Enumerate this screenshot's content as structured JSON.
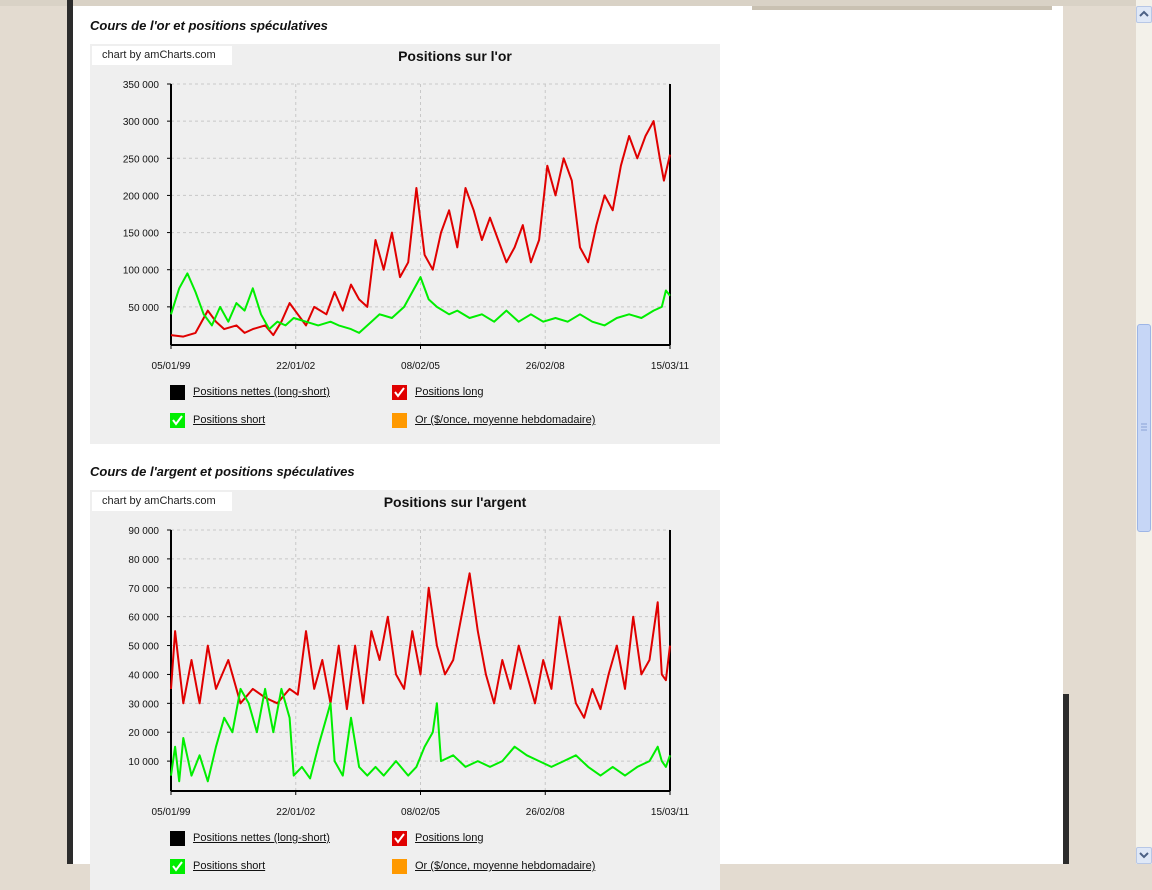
{
  "page": {
    "sections": [
      {
        "heading": "Cours de l'or et positions spéculatives"
      },
      {
        "heading": "Cours de l'argent et positions spéculatives"
      }
    ]
  },
  "colors": {
    "net": "#000000",
    "long": "#e00000",
    "short": "#00ee00",
    "gold_price": "#ff9900",
    "panel": "#efefef"
  },
  "chart_data": [
    {
      "type": "line",
      "credit": "chart by amCharts.com",
      "title": "Positions sur l'or",
      "x_tick_labels": [
        "05/01/99",
        "22/01/02",
        "08/02/05",
        "26/02/08",
        "15/03/11"
      ],
      "y_tick_labels": [
        "350 000",
        "300 000",
        "250 000",
        "200 000",
        "150 000",
        "100 000",
        "50 000"
      ],
      "ylim": [
        0,
        350000
      ],
      "xlim_years": [
        1999.0,
        2011.2
      ],
      "grid": true,
      "legend": [
        {
          "name": "Positions nettes (long-short)",
          "color": "#000000",
          "checked": false
        },
        {
          "name": "Positions long",
          "color": "#e00000",
          "checked": true
        },
        {
          "name": "Positions short",
          "color": "#00ee00",
          "checked": true
        },
        {
          "name": "Or ($/once, moyenne hebdomadaire)",
          "color": "#ff9900",
          "checked": false
        }
      ],
      "series": [
        {
          "name": "Positions long",
          "color": "#e00000",
          "points": [
            [
              1999.0,
              12000
            ],
            [
              1999.3,
              10000
            ],
            [
              1999.6,
              15000
            ],
            [
              1999.9,
              45000
            ],
            [
              2000.1,
              30000
            ],
            [
              2000.3,
              20000
            ],
            [
              2000.6,
              25000
            ],
            [
              2000.8,
              15000
            ],
            [
              2001.0,
              20000
            ],
            [
              2001.3,
              25000
            ],
            [
              2001.5,
              12000
            ],
            [
              2001.7,
              30000
            ],
            [
              2001.9,
              55000
            ],
            [
              2002.1,
              40000
            ],
            [
              2002.3,
              25000
            ],
            [
              2002.5,
              50000
            ],
            [
              2002.8,
              40000
            ],
            [
              2003.0,
              70000
            ],
            [
              2003.2,
              45000
            ],
            [
              2003.4,
              80000
            ],
            [
              2003.6,
              60000
            ],
            [
              2003.8,
              50000
            ],
            [
              2004.0,
              140000
            ],
            [
              2004.2,
              100000
            ],
            [
              2004.4,
              150000
            ],
            [
              2004.6,
              90000
            ],
            [
              2004.8,
              110000
            ],
            [
              2005.0,
              210000
            ],
            [
              2005.2,
              120000
            ],
            [
              2005.4,
              100000
            ],
            [
              2005.6,
              150000
            ],
            [
              2005.8,
              180000
            ],
            [
              2006.0,
              130000
            ],
            [
              2006.2,
              210000
            ],
            [
              2006.4,
              180000
            ],
            [
              2006.6,
              140000
            ],
            [
              2006.8,
              170000
            ],
            [
              2007.0,
              140000
            ],
            [
              2007.2,
              110000
            ],
            [
              2007.4,
              130000
            ],
            [
              2007.6,
              160000
            ],
            [
              2007.8,
              110000
            ],
            [
              2008.0,
              140000
            ],
            [
              2008.2,
              240000
            ],
            [
              2008.4,
              200000
            ],
            [
              2008.6,
              250000
            ],
            [
              2008.8,
              220000
            ],
            [
              2009.0,
              130000
            ],
            [
              2009.2,
              110000
            ],
            [
              2009.4,
              160000
            ],
            [
              2009.6,
              200000
            ],
            [
              2009.8,
              180000
            ],
            [
              2010.0,
              240000
            ],
            [
              2010.2,
              280000
            ],
            [
              2010.4,
              250000
            ],
            [
              2010.6,
              280000
            ],
            [
              2010.8,
              300000
            ],
            [
              2010.95,
              250000
            ],
            [
              2011.05,
              220000
            ],
            [
              2011.2,
              255000
            ]
          ]
        },
        {
          "name": "Positions short",
          "color": "#00ee00",
          "points": [
            [
              1999.0,
              40000
            ],
            [
              1999.2,
              75000
            ],
            [
              1999.4,
              95000
            ],
            [
              1999.6,
              70000
            ],
            [
              1999.8,
              40000
            ],
            [
              2000.0,
              25000
            ],
            [
              2000.2,
              50000
            ],
            [
              2000.4,
              30000
            ],
            [
              2000.6,
              55000
            ],
            [
              2000.8,
              45000
            ],
            [
              2001.0,
              75000
            ],
            [
              2001.2,
              40000
            ],
            [
              2001.4,
              20000
            ],
            [
              2001.6,
              30000
            ],
            [
              2001.8,
              25000
            ],
            [
              2002.0,
              35000
            ],
            [
              2002.3,
              30000
            ],
            [
              2002.6,
              25000
            ],
            [
              2002.9,
              30000
            ],
            [
              2003.1,
              25000
            ],
            [
              2003.4,
              20000
            ],
            [
              2003.6,
              15000
            ],
            [
              2003.9,
              30000
            ],
            [
              2004.1,
              40000
            ],
            [
              2004.4,
              35000
            ],
            [
              2004.7,
              50000
            ],
            [
              2004.9,
              70000
            ],
            [
              2005.1,
              90000
            ],
            [
              2005.3,
              60000
            ],
            [
              2005.5,
              50000
            ],
            [
              2005.8,
              40000
            ],
            [
              2006.0,
              45000
            ],
            [
              2006.3,
              35000
            ],
            [
              2006.6,
              40000
            ],
            [
              2006.9,
              30000
            ],
            [
              2007.2,
              45000
            ],
            [
              2007.5,
              30000
            ],
            [
              2007.8,
              40000
            ],
            [
              2008.1,
              30000
            ],
            [
              2008.4,
              35000
            ],
            [
              2008.7,
              30000
            ],
            [
              2009.0,
              40000
            ],
            [
              2009.3,
              30000
            ],
            [
              2009.6,
              25000
            ],
            [
              2009.9,
              35000
            ],
            [
              2010.2,
              40000
            ],
            [
              2010.5,
              35000
            ],
            [
              2010.8,
              45000
            ],
            [
              2011.0,
              50000
            ],
            [
              2011.1,
              72000
            ],
            [
              2011.2,
              65000
            ]
          ]
        }
      ]
    },
    {
      "type": "line",
      "credit": "chart by amCharts.com",
      "title": "Positions sur l'argent",
      "x_tick_labels": [
        "05/01/99",
        "22/01/02",
        "08/02/05",
        "26/02/08",
        "15/03/11"
      ],
      "y_tick_labels": [
        "90 000",
        "80 000",
        "70 000",
        "60 000",
        "50 000",
        "40 000",
        "30 000",
        "20 000",
        "10 000"
      ],
      "ylim": [
        0,
        90000
      ],
      "xlim_years": [
        1999.0,
        2011.2
      ],
      "grid": true,
      "legend": [
        {
          "name": "Positions nettes (long-short)",
          "color": "#000000",
          "checked": false
        },
        {
          "name": "Positions long",
          "color": "#e00000",
          "checked": true
        },
        {
          "name": "Positions short",
          "color": "#00ee00",
          "checked": true
        },
        {
          "name": "Or ($/once, moyenne hebdomadaire)",
          "color": "#ff9900",
          "checked": false
        }
      ],
      "series": [
        {
          "name": "Positions long",
          "color": "#e00000",
          "points": [
            [
              1999.0,
              35000
            ],
            [
              1999.1,
              55000
            ],
            [
              1999.3,
              30000
            ],
            [
              1999.5,
              45000
            ],
            [
              1999.7,
              30000
            ],
            [
              1999.9,
              50000
            ],
            [
              2000.1,
              35000
            ],
            [
              2000.4,
              45000
            ],
            [
              2000.7,
              30000
            ],
            [
              2001.0,
              35000
            ],
            [
              2001.3,
              32000
            ],
            [
              2001.6,
              30000
            ],
            [
              2001.9,
              35000
            ],
            [
              2002.1,
              33000
            ],
            [
              2002.3,
              55000
            ],
            [
              2002.5,
              35000
            ],
            [
              2002.7,
              45000
            ],
            [
              2002.9,
              30000
            ],
            [
              2003.1,
              50000
            ],
            [
              2003.3,
              28000
            ],
            [
              2003.5,
              50000
            ],
            [
              2003.7,
              30000
            ],
            [
              2003.9,
              55000
            ],
            [
              2004.1,
              45000
            ],
            [
              2004.3,
              60000
            ],
            [
              2004.5,
              40000
            ],
            [
              2004.7,
              35000
            ],
            [
              2004.9,
              55000
            ],
            [
              2005.1,
              40000
            ],
            [
              2005.3,
              70000
            ],
            [
              2005.5,
              50000
            ],
            [
              2005.7,
              40000
            ],
            [
              2005.9,
              45000
            ],
            [
              2006.1,
              60000
            ],
            [
              2006.3,
              75000
            ],
            [
              2006.5,
              55000
            ],
            [
              2006.7,
              40000
            ],
            [
              2006.9,
              30000
            ],
            [
              2007.1,
              45000
            ],
            [
              2007.3,
              35000
            ],
            [
              2007.5,
              50000
            ],
            [
              2007.7,
              40000
            ],
            [
              2007.9,
              30000
            ],
            [
              2008.1,
              45000
            ],
            [
              2008.3,
              35000
            ],
            [
              2008.5,
              60000
            ],
            [
              2008.7,
              45000
            ],
            [
              2008.9,
              30000
            ],
            [
              2009.1,
              25000
            ],
            [
              2009.3,
              35000
            ],
            [
              2009.5,
              28000
            ],
            [
              2009.7,
              40000
            ],
            [
              2009.9,
              50000
            ],
            [
              2010.1,
              35000
            ],
            [
              2010.3,
              60000
            ],
            [
              2010.5,
              40000
            ],
            [
              2010.7,
              45000
            ],
            [
              2010.9,
              65000
            ],
            [
              2011.0,
              40000
            ],
            [
              2011.1,
              38000
            ],
            [
              2011.2,
              50000
            ]
          ]
        },
        {
          "name": "Positions short",
          "color": "#00ee00",
          "points": [
            [
              1999.0,
              5000
            ],
            [
              1999.1,
              15000
            ],
            [
              1999.2,
              3000
            ],
            [
              1999.3,
              18000
            ],
            [
              1999.5,
              5000
            ],
            [
              1999.7,
              12000
            ],
            [
              1999.9,
              3000
            ],
            [
              2000.1,
              15000
            ],
            [
              2000.3,
              25000
            ],
            [
              2000.5,
              20000
            ],
            [
              2000.7,
              35000
            ],
            [
              2000.9,
              30000
            ],
            [
              2001.1,
              20000
            ],
            [
              2001.3,
              35000
            ],
            [
              2001.5,
              20000
            ],
            [
              2001.7,
              35000
            ],
            [
              2001.9,
              25000
            ],
            [
              2002.0,
              5000
            ],
            [
              2002.2,
              8000
            ],
            [
              2002.4,
              4000
            ],
            [
              2002.6,
              15000
            ],
            [
              2002.8,
              25000
            ],
            [
              2002.9,
              30000
            ],
            [
              2003.0,
              10000
            ],
            [
              2003.2,
              5000
            ],
            [
              2003.4,
              25000
            ],
            [
              2003.6,
              8000
            ],
            [
              2003.8,
              5000
            ],
            [
              2004.0,
              8000
            ],
            [
              2004.2,
              5000
            ],
            [
              2004.5,
              10000
            ],
            [
              2004.8,
              5000
            ],
            [
              2005.0,
              8000
            ],
            [
              2005.2,
              15000
            ],
            [
              2005.4,
              20000
            ],
            [
              2005.5,
              30000
            ],
            [
              2005.6,
              10000
            ],
            [
              2005.9,
              12000
            ],
            [
              2006.2,
              8000
            ],
            [
              2006.5,
              10000
            ],
            [
              2006.8,
              8000
            ],
            [
              2007.1,
              10000
            ],
            [
              2007.4,
              15000
            ],
            [
              2007.7,
              12000
            ],
            [
              2008.0,
              10000
            ],
            [
              2008.3,
              8000
            ],
            [
              2008.6,
              10000
            ],
            [
              2008.9,
              12000
            ],
            [
              2009.2,
              8000
            ],
            [
              2009.5,
              5000
            ],
            [
              2009.8,
              8000
            ],
            [
              2010.1,
              5000
            ],
            [
              2010.4,
              8000
            ],
            [
              2010.7,
              10000
            ],
            [
              2010.9,
              15000
            ],
            [
              2011.0,
              10000
            ],
            [
              2011.1,
              8000
            ],
            [
              2011.2,
              12000
            ]
          ]
        }
      ]
    }
  ]
}
